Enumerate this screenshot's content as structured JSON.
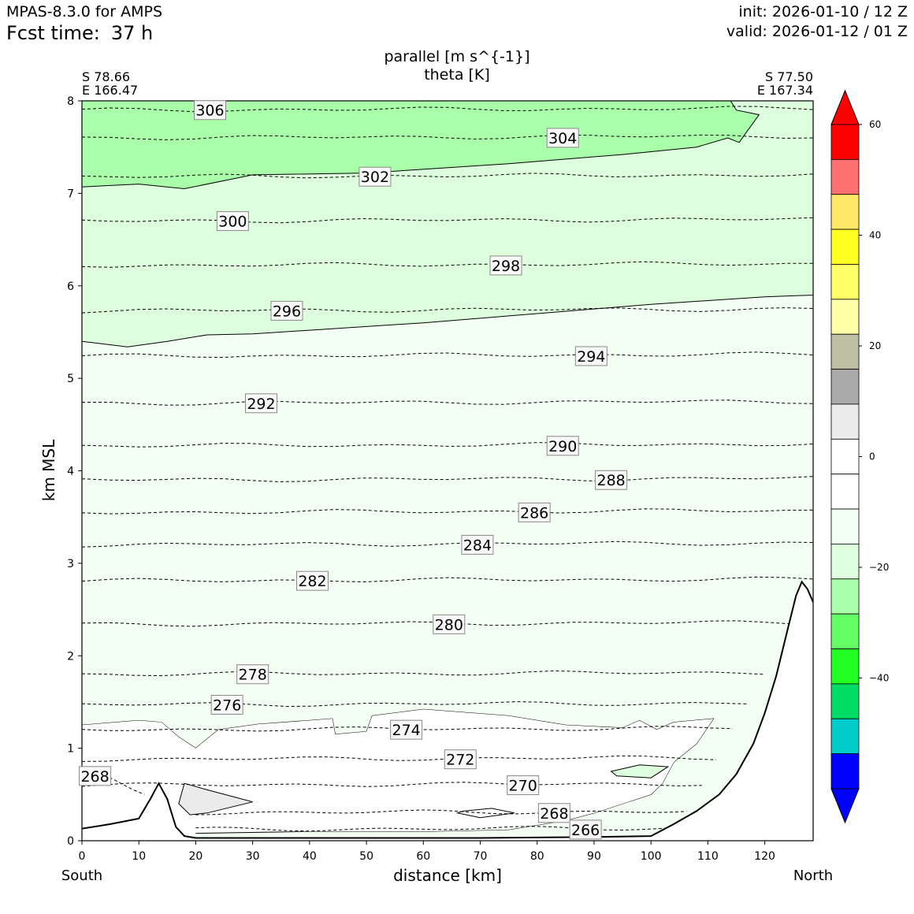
{
  "header": {
    "model": "MPAS-8.3.0 for AMPS",
    "fcst_label": "Fcst time:",
    "fcst_value": "37 h",
    "init": "init: 2026-01-10 / 12 Z",
    "valid": "valid: 2026-01-12 / 01 Z"
  },
  "chart_data": {
    "type": "cross-section",
    "title_line1": "parallel [m s^{-1}]",
    "title_line2": "theta [K]",
    "xlabel": "distance [km]",
    "ylabel": "km MSL",
    "xlim": [
      0,
      128.5
    ],
    "ylim": [
      0,
      8
    ],
    "x_ticks": [
      0,
      10,
      20,
      30,
      40,
      50,
      60,
      70,
      80,
      90,
      100,
      110,
      120
    ],
    "y_ticks": [
      0,
      1,
      2,
      3,
      4,
      5,
      6,
      7,
      8
    ],
    "left_end": {
      "lat": "S 78.66",
      "lon": "E 166.47",
      "label": "South"
    },
    "right_end": {
      "lat": "S 77.50",
      "lon": "E 167.34",
      "label": "North"
    },
    "terrain_km": [
      [
        0,
        0.13
      ],
      [
        5,
        0.18
      ],
      [
        10,
        0.24
      ],
      [
        12,
        0.45
      ],
      [
        13.5,
        0.62
      ],
      [
        15,
        0.45
      ],
      [
        16.5,
        0.15
      ],
      [
        18,
        0.05
      ],
      [
        20,
        0.03
      ],
      [
        30,
        0.03
      ],
      [
        50,
        0.03
      ],
      [
        70,
        0.03
      ],
      [
        90,
        0.04
      ],
      [
        100,
        0.05
      ],
      [
        104,
        0.18
      ],
      [
        108,
        0.32
      ],
      [
        112,
        0.5
      ],
      [
        115,
        0.72
      ],
      [
        118,
        1.05
      ],
      [
        120,
        1.38
      ],
      [
        122,
        1.78
      ],
      [
        124,
        2.28
      ],
      [
        125.5,
        2.65
      ],
      [
        126.5,
        2.8
      ],
      [
        127.5,
        2.72
      ],
      [
        128.5,
        2.58
      ]
    ],
    "wind_bands": [
      {
        "name": "band-302-to-304-green",
        "color": "#aaffaa",
        "top": [
          [
            0,
            8
          ],
          [
            114,
            8
          ],
          [
            115,
            7.9
          ],
          [
            119,
            7.85
          ],
          [
            117,
            7.68
          ],
          [
            115.5,
            7.55
          ],
          [
            113.5,
            7.6
          ],
          [
            108,
            7.5
          ],
          [
            95,
            7.42
          ],
          [
            75,
            7.32
          ],
          [
            50,
            7.22
          ],
          [
            30,
            7.2
          ],
          [
            18,
            7.05
          ],
          [
            10,
            7.1
          ],
          [
            0,
            7.07
          ]
        ]
      },
      {
        "name": "band-light-green",
        "color": "#ddffdd",
        "top": [
          [
            0,
            8
          ],
          [
            128.5,
            8
          ],
          [
            128.5,
            5.9
          ],
          [
            120,
            5.88
          ],
          [
            100,
            5.8
          ],
          [
            80,
            5.7
          ],
          [
            60,
            5.6
          ],
          [
            40,
            5.52
          ],
          [
            30,
            5.48
          ],
          [
            22,
            5.47
          ],
          [
            15,
            5.4
          ],
          [
            8,
            5.34
          ],
          [
            0,
            5.4
          ]
        ]
      }
    ],
    "theta_contours": [
      {
        "value": "306",
        "y": 7.9,
        "label_x": 22.5
      },
      {
        "value": "304",
        "y": 7.6,
        "label_x": 84.5
      },
      {
        "value": "302",
        "y": 7.18,
        "label_x": 51.5
      },
      {
        "value": "300",
        "y": 6.7,
        "label_x": 26.5
      },
      {
        "value": "298",
        "y": 6.22,
        "label_x": 74.5
      },
      {
        "value": "296",
        "y": 5.73,
        "label_x": 36
      },
      {
        "value": "294",
        "y": 5.24,
        "label_x": 89.5
      },
      {
        "value": "292",
        "y": 4.73,
        "label_x": 31.5
      },
      {
        "value": "290",
        "y": 4.27,
        "label_x": 84.5
      },
      {
        "value": "288",
        "y": 3.9,
        "label_x": 93
      },
      {
        "value": "286",
        "y": 3.55,
        "label_x": 79.5
      },
      {
        "value": "284",
        "y": 3.2,
        "label_x": 69.5
      },
      {
        "value": "282",
        "y": 2.81,
        "label_x": 40.5
      },
      {
        "value": "280",
        "y": 2.34,
        "label_x": 64.5
      },
      {
        "value": "278",
        "y": 1.8,
        "label_x": 30
      },
      {
        "value": "276",
        "y": 1.47,
        "label_x": 25.5
      },
      {
        "value": "274",
        "y": 1.2,
        "label_x": 57
      },
      {
        "value": "272",
        "y": 0.88,
        "label_x": 66.5
      },
      {
        "value": "270",
        "y": 0.6,
        "label_x": 77.5
      },
      {
        "value": "268",
        "y": 0.3,
        "label_x": 83
      },
      {
        "value": "268",
        "y": 0.7,
        "label_x": 2.3
      },
      {
        "value": "266",
        "y": 0.12,
        "label_x": 88.5
      }
    ],
    "colorbar": {
      "colors": [
        "#0000ff",
        "#0000ff",
        "#00cccc",
        "#00dd66",
        "#22ff22",
        "#66ff66",
        "#aaffaa",
        "#ddffdd",
        "#f4fff4",
        "#ffffff",
        "#ffffff",
        "#ebebeb",
        "#aaaaaa",
        "#bfbfa4",
        "#ffffaa",
        "#ffff66",
        "#ffff22",
        "#ffe866",
        "#ff7070",
        "#ff0000",
        "#ff0000"
      ],
      "ticks": [
        -40,
        -20,
        0,
        20,
        40,
        60
      ],
      "tick_labels": [
        "−40",
        "−20",
        "0",
        "20",
        "40",
        "60"
      ],
      "range": [
        -60,
        60
      ]
    }
  }
}
